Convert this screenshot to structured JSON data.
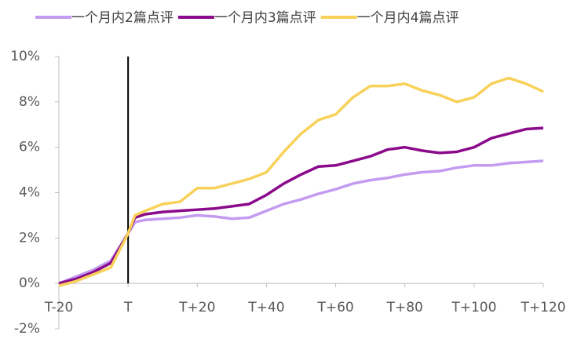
{
  "chart_data": {
    "type": "line",
    "x": [
      -20,
      -15,
      -10,
      -5,
      0,
      2,
      5,
      10,
      15,
      20,
      25,
      30,
      35,
      40,
      45,
      50,
      55,
      60,
      65,
      70,
      75,
      80,
      85,
      90,
      95,
      100,
      105,
      110,
      115,
      120
    ],
    "series": [
      {
        "name": "一个月内2篇点评",
        "color": "#c39bf0",
        "values": [
          0,
          0.3,
          0.6,
          1.0,
          2.2,
          2.7,
          2.8,
          2.85,
          2.9,
          3.0,
          2.95,
          2.85,
          2.9,
          3.2,
          3.5,
          3.7,
          3.95,
          4.15,
          4.4,
          4.55,
          4.65,
          4.8,
          4.9,
          4.95,
          5.1,
          5.2,
          5.2,
          5.3,
          5.35,
          5.4
        ]
      },
      {
        "name": "一个月内3篇点评",
        "color": "#8b0a8b",
        "values": [
          0,
          0.2,
          0.5,
          0.9,
          2.2,
          2.9,
          3.05,
          3.15,
          3.2,
          3.25,
          3.3,
          3.4,
          3.5,
          3.9,
          4.4,
          4.8,
          5.15,
          5.2,
          5.4,
          5.6,
          5.9,
          6.0,
          5.85,
          5.75,
          5.8,
          6.0,
          6.4,
          6.6,
          6.8,
          6.85
        ]
      },
      {
        "name": "一个月内4篇点评",
        "color": "#f8d15a",
        "values": [
          -0.1,
          0.1,
          0.4,
          0.7,
          2.2,
          3.0,
          3.2,
          3.5,
          3.6,
          4.2,
          4.2,
          4.4,
          4.6,
          4.9,
          5.8,
          6.6,
          7.2,
          7.45,
          8.2,
          8.7,
          8.7,
          8.8,
          8.5,
          8.3,
          8.0,
          8.2,
          8.8,
          9.05,
          8.8,
          8.45
        ]
      }
    ],
    "xlim": [
      -20,
      120
    ],
    "xticks": [
      {
        "value": -20,
        "label": "T-20"
      },
      {
        "value": 0,
        "label": "T"
      },
      {
        "value": 20,
        "label": "T+20"
      },
      {
        "value": 40,
        "label": "T+40"
      },
      {
        "value": 60,
        "label": "T+60"
      },
      {
        "value": 80,
        "label": "T+80"
      },
      {
        "value": 100,
        "label": "T+100"
      },
      {
        "value": 120,
        "label": "T+120"
      }
    ],
    "ylim": [
      -2,
      10
    ],
    "yticks": [
      {
        "value": -2,
        "label": "-2%"
      },
      {
        "value": 0,
        "label": "0%"
      },
      {
        "value": 2,
        "label": "2%"
      },
      {
        "value": 4,
        "label": "4%"
      },
      {
        "value": 6,
        "label": "6%"
      },
      {
        "value": 8,
        "label": "8%"
      },
      {
        "value": 10,
        "label": "10%"
      }
    ],
    "vline_x": 0,
    "grid": false
  }
}
